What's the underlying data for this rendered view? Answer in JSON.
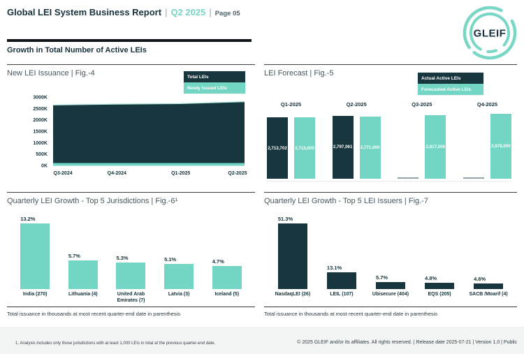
{
  "header": {
    "title": "Global LEI System Business Report",
    "sep": "|",
    "period": "Q2 2025",
    "page": "Page 05",
    "logo_text": "GLEIF"
  },
  "section_title": "Growth in Total Number of Active LEIs",
  "colors": {
    "dark": "#17363d",
    "teal": "#73d5c3",
    "zero_bar_gray": "#93a2a6",
    "header_teal": "#79d6c4"
  },
  "chart_data": [
    {
      "id": "fig4",
      "type": "area",
      "title": "New LEI Issuance | Fig.-4",
      "categories": [
        "Q3-2024",
        "Q4-2024",
        "Q1-2025",
        "Q2-2025"
      ],
      "series": [
        {
          "name": "Total LEIs",
          "values": [
            2650000,
            2690000,
            2713702,
            2797061
          ]
        },
        {
          "name": "Newly Issued LEIs",
          "values": [
            45000,
            45000,
            50000,
            55000
          ]
        }
      ],
      "legend": [
        "Total LEIs",
        "Newly Issued LEIs"
      ],
      "yticks": [
        "3000K",
        "2500K",
        "2000K",
        "1500K",
        "1000K",
        "500K",
        "0K"
      ],
      "ylim": [
        0,
        3000000
      ],
      "grid": false,
      "legend_position": "top-right"
    },
    {
      "id": "fig5",
      "type": "bar",
      "title": "LEI Forecast | Fig.-5",
      "categories": [
        "Q1-2025",
        "Q2-2025",
        "Q3-2025",
        "Q4-2025"
      ],
      "series": [
        {
          "name": "Actual Active LEIs",
          "values": [
            2713702,
            2797061,
            null,
            null
          ],
          "labels": [
            "2,713,702",
            "2,797,061",
            "",
            ""
          ]
        },
        {
          "name": "Forecasted Active LEIs",
          "values": [
            2713000,
            2771000,
            2817000,
            2878000
          ],
          "labels": [
            "2,713,000",
            "2,771,000",
            "2,817,000",
            "2,878,000"
          ]
        }
      ],
      "legend": [
        "Actual Active LEIs",
        "Forecasted Active LEIs"
      ],
      "legend_position": "top-right"
    },
    {
      "id": "fig6",
      "type": "bar",
      "title": "Quarterly LEI Growth - Top 5 Jurisdictions | Fig.-6¹",
      "categories": [
        "India (270)",
        "Lithuania (4)",
        "United Arab Emirates (7)",
        "Latvia (3)",
        "Iceland (5)"
      ],
      "values": [
        13.2,
        5.7,
        5.3,
        5.1,
        4.7
      ],
      "labels": [
        "13.2%",
        "5.7%",
        "5.3%",
        "5.1%",
        "4.7%"
      ],
      "bar_color": "#73d5c3",
      "note": "Total issuance in thousands at most recent quarter-end date in parenthesis"
    },
    {
      "id": "fig7",
      "type": "bar",
      "title": "Quarterly LEI Growth - Top 5 LEI Issuers | Fig.-7",
      "categories": [
        "NasdaqLEI (26)",
        "LEIL (107)",
        "Ubisecure (404)",
        "EQS (205)",
        "SACB /Moarif (4)"
      ],
      "values": [
        51.3,
        13.1,
        5.7,
        4.8,
        4.6
      ],
      "labels": [
        "51.3%",
        "13.1%",
        "5.7%",
        "4.8%",
        "4.6%"
      ],
      "bar_color": "#17363d",
      "note": "Total issuance in thousands at most recent quarter-end date in parenthesis"
    }
  ],
  "footer": {
    "footnote": "1. Analysis includes only those jurisdictions with at least 1,000 LEIs in total at the previous quarter-end date.",
    "copyright": "© 2025 GLEIF and/or its affiliates. All rights reserved.  | Release date 2025-07-21 | Version 1.0 | Public"
  }
}
